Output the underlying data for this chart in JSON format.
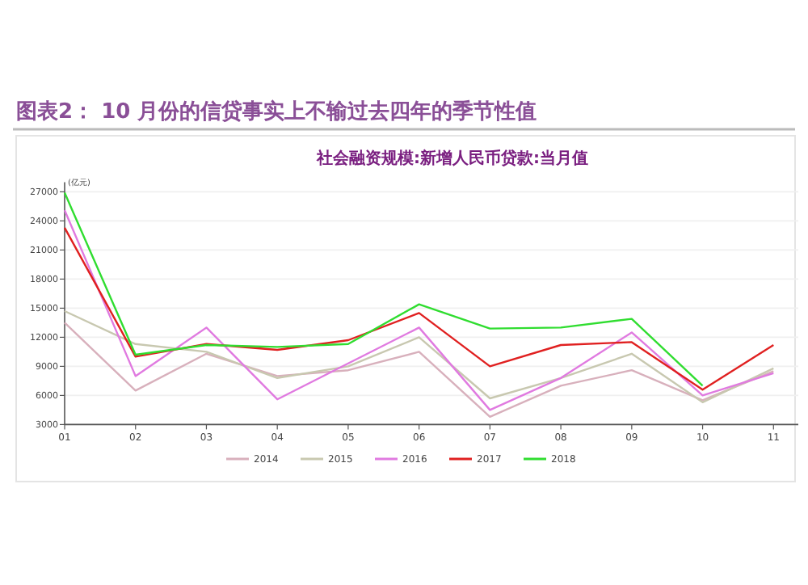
{
  "chart_data": {
    "type": "line",
    "title": "图表2：  10 月份的信贷事实上不输过去四年的季节性值",
    "subtitle": "社会融资规模:新增人民币贷款:当月值",
    "ylabel": "(亿元)",
    "x": [
      1,
      2,
      3,
      4,
      5,
      6,
      7,
      8,
      9,
      10,
      11
    ],
    "xlim": [
      1,
      11.35
    ],
    "xticks": [
      {
        "value": 1,
        "label": "01"
      },
      {
        "value": 2,
        "label": "02"
      },
      {
        "value": 3,
        "label": "03"
      },
      {
        "value": 4,
        "label": "04"
      },
      {
        "value": 5,
        "label": "05"
      },
      {
        "value": 6,
        "label": "06"
      },
      {
        "value": 7,
        "label": "07"
      },
      {
        "value": 8,
        "label": "08"
      },
      {
        "value": 9,
        "label": "09"
      },
      {
        "value": 10,
        "label": "10"
      },
      {
        "value": 11,
        "label": "11"
      }
    ],
    "ylim": [
      3000,
      27000
    ],
    "yticks": [
      3000,
      6000,
      9000,
      12000,
      15000,
      18000,
      21000,
      24000,
      27000
    ],
    "grid": "y",
    "legend": "bottom",
    "marker": "none",
    "line_style": "solid",
    "series": [
      {
        "name": "2014",
        "color": "#d8b0bc",
        "values": [
          13500,
          6500,
          10300,
          8000,
          8600,
          10500,
          3800,
          7000,
          8600,
          5500,
          8500
        ]
      },
      {
        "name": "2015",
        "color": "#c8c8b0",
        "values": [
          14700,
          11300,
          10500,
          7800,
          9000,
          12000,
          5700,
          7800,
          10300,
          5300,
          8800
        ]
      },
      {
        "name": "2016",
        "color": "#e07ae0",
        "values": [
          25100,
          8000,
          13000,
          5600,
          9300,
          13000,
          4500,
          7800,
          12500,
          6000,
          8300
        ]
      },
      {
        "name": "2017",
        "color": "#e02020",
        "values": [
          23300,
          10000,
          11300,
          10700,
          11700,
          14500,
          9000,
          11200,
          11500,
          6600,
          11200
        ]
      },
      {
        "name": "2018",
        "color": "#30dd30",
        "values": [
          26900,
          10200,
          11200,
          11000,
          11300,
          15400,
          12900,
          13000,
          13900,
          7000,
          null
        ]
      }
    ]
  }
}
